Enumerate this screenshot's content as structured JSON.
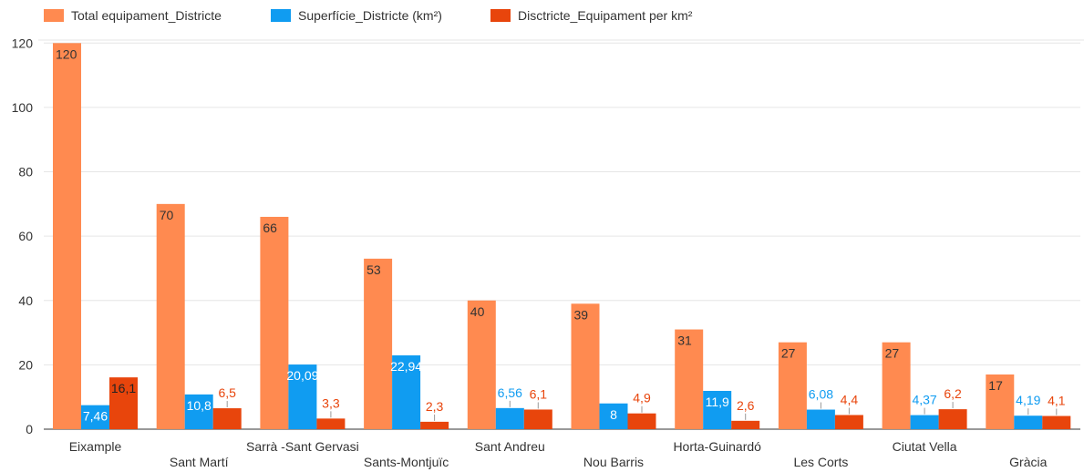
{
  "chart_data": {
    "type": "bar",
    "categories": [
      "Eixample",
      "Sant Martí",
      "Sarrà -Sant Gervasi",
      "Sants-Montjuïc",
      "Sant Andreu",
      "Nou Barris",
      "Horta-Guinardó",
      "Les Corts",
      "Ciutat Vella",
      "Gràcia"
    ],
    "series": [
      {
        "name": "Total equipament_Districte",
        "color": "#ff8a50",
        "label_color": "#333333",
        "values": [
          120,
          70,
          66,
          53,
          40,
          39,
          31,
          27,
          27,
          17
        ],
        "labels": [
          "120",
          "70",
          "66",
          "53",
          "40",
          "39",
          "31",
          "27",
          "27",
          "17"
        ]
      },
      {
        "name": "Superfície_Districte (km²)",
        "color": "#109cf1",
        "label_color": "#109cf1",
        "values": [
          7.46,
          10.8,
          20.09,
          22.94,
          6.56,
          8,
          11.9,
          6.08,
          4.37,
          4.19
        ],
        "labels": [
          "7,46",
          "10,8",
          "20,09",
          "22,94",
          "6,56",
          "8",
          "11,9",
          "6,08",
          "4,37",
          "4,19"
        ]
      },
      {
        "name": "Disctricte_Equipament per km²",
        "color": "#e8450c",
        "label_color": "#e8450c",
        "values": [
          16.1,
          6.5,
          3.3,
          2.3,
          6.1,
          4.9,
          2.6,
          4.4,
          6.2,
          4.1
        ],
        "labels": [
          "16,1",
          "6,5",
          "3,3",
          "2,3",
          "6,1",
          "4,9",
          "2,6",
          "4,4",
          "6,2",
          "4,1"
        ]
      }
    ],
    "y_ticks": [
      "0",
      "20",
      "40",
      "60",
      "80",
      "100",
      "120"
    ],
    "ylim": [
      0,
      130
    ],
    "legend_position": "top-left",
    "grid": true,
    "title": "",
    "xlabel": "",
    "ylabel": ""
  }
}
